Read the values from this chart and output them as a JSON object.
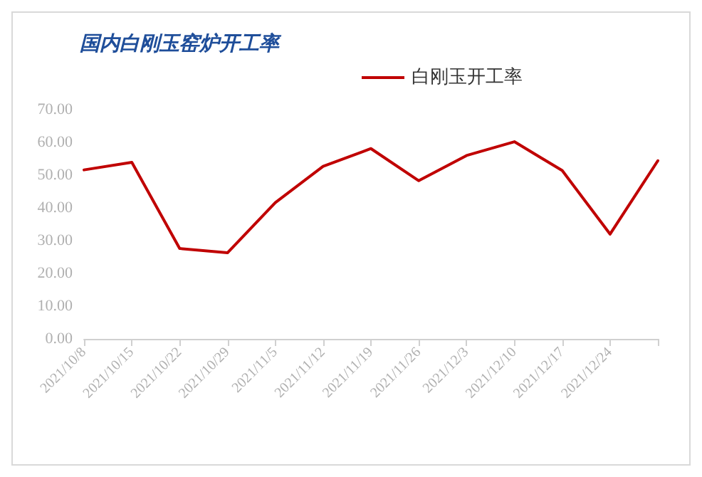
{
  "chart_data": {
    "type": "line",
    "title": "国内白刚玉窑炉开工率",
    "categories": [
      "2021/10/8",
      "2021/10/15",
      "2021/10/22",
      "2021/10/29",
      "2021/11/5",
      "2021/11/12",
      "2021/11/19",
      "2021/11/26",
      "2021/12/3",
      "2021/12/10",
      "2021/12/17",
      "2021/12/24",
      null
    ],
    "series": [
      {
        "name": "白刚玉开工率",
        "color": "#c00000",
        "values": [
          51.6,
          53.9,
          27.6,
          26.3,
          41.6,
          52.7,
          58.1,
          48.3,
          56.0,
          60.2,
          51.4,
          32.0,
          54.4
        ]
      }
    ],
    "ylim": [
      0,
      70
    ],
    "yticks": [
      {
        "value": 0,
        "label": "0.00"
      },
      {
        "value": 10,
        "label": "10.00"
      },
      {
        "value": 20,
        "label": "20.00"
      },
      {
        "value": 30,
        "label": "30.00"
      },
      {
        "value": 40,
        "label": "40.00"
      },
      {
        "value": 50,
        "label": "50.00"
      },
      {
        "value": 60,
        "label": "60.00"
      },
      {
        "value": 70,
        "label": "70.00"
      }
    ],
    "grid": false,
    "legend": "top",
    "marker": "none",
    "line_style": "solid"
  }
}
